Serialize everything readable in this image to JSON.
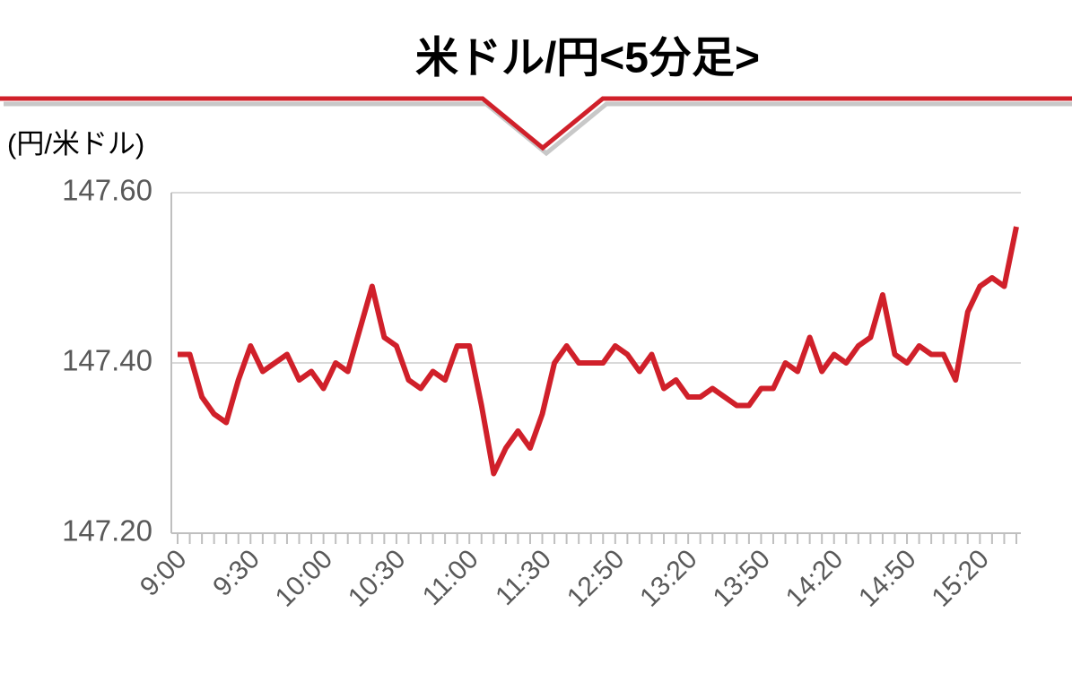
{
  "chart_data": {
    "type": "line",
    "title": "米ドル/円<5分足>",
    "y_label": "(円/米ドル)",
    "categories": [
      "9:00",
      null,
      null,
      null,
      null,
      null,
      "9:30",
      null,
      null,
      null,
      null,
      null,
      "10:00",
      null,
      null,
      null,
      null,
      null,
      "10:30",
      null,
      null,
      null,
      null,
      null,
      "11:00",
      null,
      null,
      null,
      null,
      null,
      "11:30",
      null,
      null,
      null,
      null,
      null,
      "12:50",
      null,
      null,
      null,
      null,
      null,
      "13:20",
      null,
      null,
      null,
      null,
      null,
      "13:50",
      null,
      null,
      null,
      null,
      null,
      "14:20",
      null,
      null,
      null,
      null,
      null,
      "14:50",
      null,
      null,
      null,
      null,
      null,
      "15:20",
      null,
      null,
      null
    ],
    "series": [
      {
        "name": "米ドル/円",
        "color": "#d0202a",
        "values": [
          147.41,
          147.41,
          147.36,
          147.34,
          147.33,
          147.38,
          147.42,
          147.39,
          147.4,
          147.41,
          147.38,
          147.39,
          147.37,
          147.4,
          147.39,
          147.44,
          147.49,
          147.43,
          147.42,
          147.38,
          147.37,
          147.39,
          147.38,
          147.42,
          147.42,
          147.35,
          147.27,
          147.3,
          147.32,
          147.3,
          147.34,
          147.4,
          147.42,
          147.4,
          147.4,
          147.4,
          147.42,
          147.41,
          147.39,
          147.41,
          147.37,
          147.38,
          147.36,
          147.36,
          147.37,
          147.36,
          147.35,
          147.35,
          147.37,
          147.37,
          147.4,
          147.39,
          147.43,
          147.39,
          147.41,
          147.4,
          147.42,
          147.43,
          147.48,
          147.41,
          147.4,
          147.42,
          147.41,
          147.41,
          147.38,
          147.46,
          147.49,
          147.5,
          147.49,
          147.56
        ]
      }
    ],
    "ylim": [
      147.2,
      147.6
    ],
    "yticks": [
      {
        "value": 147.2,
        "label": "147.20"
      },
      {
        "value": 147.4,
        "label": "147.40"
      },
      {
        "value": 147.6,
        "label": "147.60"
      }
    ],
    "grid": true
  }
}
